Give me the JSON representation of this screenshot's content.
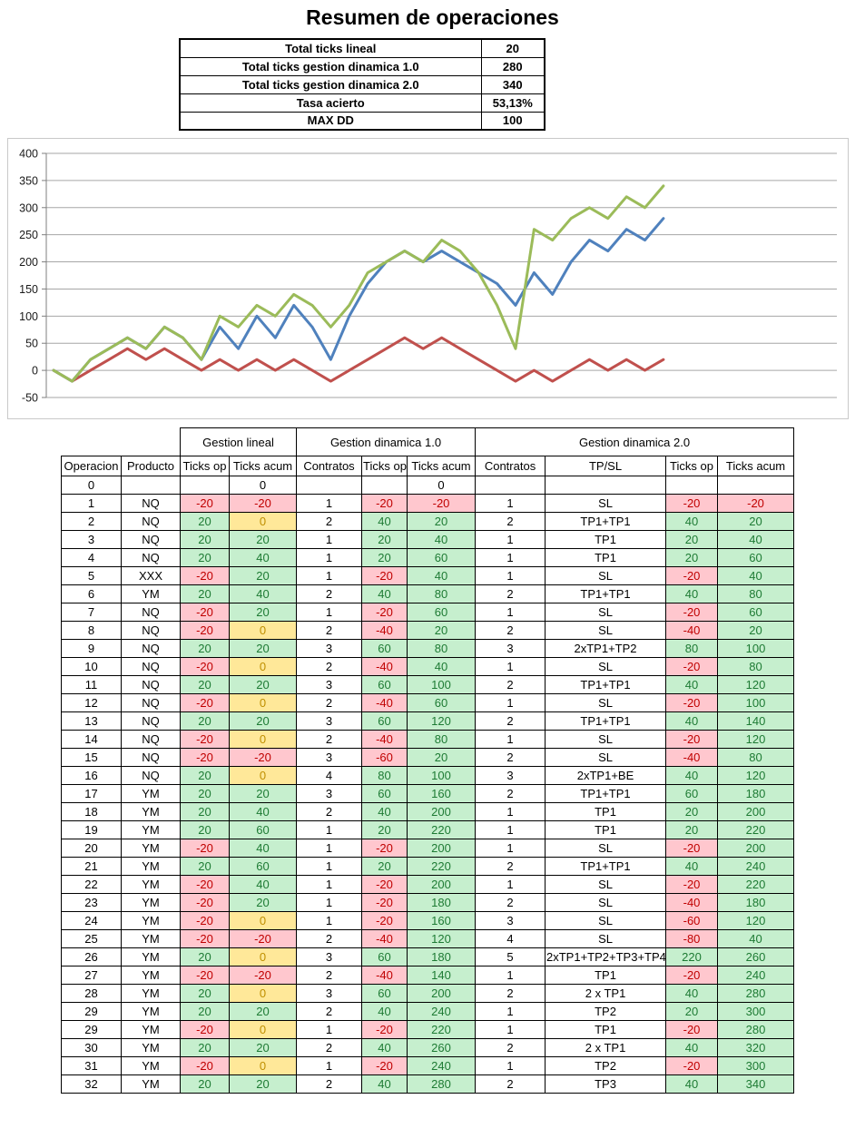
{
  "title": "Resumen de operaciones",
  "summary": {
    "rows": [
      {
        "label": "Total ticks lineal",
        "value": "20"
      },
      {
        "label": "Total ticks gestion dinamica 1.0",
        "value": "280"
      },
      {
        "label": "Total ticks gestion dinamica 2.0",
        "value": "340"
      },
      {
        "label": "Tasa acierto",
        "value": "53,13%"
      },
      {
        "label": "MAX DD",
        "value": "100"
      }
    ]
  },
  "chart_data": {
    "type": "line",
    "title": "",
    "xlabel": "",
    "ylabel": "",
    "ylim": [
      -50,
      400
    ],
    "ytick_interval": 50,
    "grid": true,
    "legend": "none",
    "x_axis_labels": "hidden",
    "x": [
      "0",
      "1",
      "2",
      "3",
      "4",
      "5",
      "6",
      "7",
      "8",
      "9",
      "10",
      "11",
      "12",
      "13",
      "14",
      "15",
      "16",
      "17",
      "18",
      "19",
      "20",
      "21",
      "22",
      "23",
      "24",
      "25",
      "26",
      "27",
      "28",
      "29",
      "29",
      "30",
      "31",
      "32"
    ],
    "series": [
      {
        "name": "Gestion lineal",
        "color": "#C0504D",
        "values": [
          0,
          -20,
          0,
          20,
          40,
          20,
          40,
          20,
          0,
          20,
          0,
          20,
          0,
          20,
          0,
          -20,
          0,
          20,
          40,
          60,
          40,
          60,
          40,
          20,
          0,
          -20,
          0,
          -20,
          0,
          20,
          0,
          20,
          0,
          20
        ]
      },
      {
        "name": "Gestion dinamica 1.0",
        "color": "#4F81BD",
        "values": [
          0,
          -20,
          20,
          40,
          60,
          40,
          80,
          60,
          20,
          80,
          40,
          100,
          60,
          120,
          80,
          20,
          100,
          160,
          200,
          220,
          200,
          220,
          200,
          180,
          160,
          120,
          180,
          140,
          200,
          240,
          220,
          260,
          240,
          280
        ]
      },
      {
        "name": "Gestion dinamica 2.0",
        "color": "#9BBB59",
        "values": [
          0,
          -20,
          20,
          40,
          60,
          40,
          80,
          60,
          20,
          100,
          80,
          120,
          100,
          140,
          120,
          80,
          120,
          180,
          200,
          220,
          200,
          240,
          220,
          180,
          120,
          40,
          260,
          240,
          280,
          300,
          280,
          320,
          300,
          340
        ]
      }
    ]
  },
  "table": {
    "group_headers": [
      {
        "label": "",
        "span": 2,
        "borderless": true
      },
      {
        "label": "Gestion lineal",
        "span": 2
      },
      {
        "label": "Gestion dinamica 1.0",
        "span": 3
      },
      {
        "label": "Gestion dinamica 2.0",
        "span": 4
      }
    ],
    "columns": [
      "Operacion",
      "Producto",
      "Ticks op",
      "Ticks acum",
      "Contratos",
      "Ticks op",
      "Ticks acum",
      "Contratos",
      "TP/SL",
      "Ticks op",
      "Ticks acum"
    ],
    "column_keys": [
      "operacion",
      "producto",
      "lineal-ticks-op",
      "lineal-ticks-acum",
      "d1-contratos",
      "d1-ticks-op",
      "d1-ticks-acum",
      "d2-contratos",
      "d2-tpsl",
      "d2-ticks-op",
      "d2-ticks-acum"
    ],
    "rows": [
      [
        "0",
        "",
        "",
        "0",
        "",
        "",
        "0",
        "",
        "",
        "",
        ""
      ],
      [
        "1",
        "NQ",
        "-20",
        "-20",
        "1",
        "-20",
        "-20",
        "1",
        "SL",
        "-20",
        "-20"
      ],
      [
        "2",
        "NQ",
        "20",
        "0",
        "2",
        "40",
        "20",
        "2",
        "TP1+TP1",
        "40",
        "20"
      ],
      [
        "3",
        "NQ",
        "20",
        "20",
        "1",
        "20",
        "40",
        "1",
        "TP1",
        "20",
        "40"
      ],
      [
        "4",
        "NQ",
        "20",
        "40",
        "1",
        "20",
        "60",
        "1",
        "TP1",
        "20",
        "60"
      ],
      [
        "5",
        "XXX",
        "-20",
        "20",
        "1",
        "-20",
        "40",
        "1",
        "SL",
        "-20",
        "40"
      ],
      [
        "6",
        "YM",
        "20",
        "40",
        "2",
        "40",
        "80",
        "2",
        "TP1+TP1",
        "40",
        "80"
      ],
      [
        "7",
        "NQ",
        "-20",
        "20",
        "1",
        "-20",
        "60",
        "1",
        "SL",
        "-20",
        "60"
      ],
      [
        "8",
        "NQ",
        "-20",
        "0",
        "2",
        "-40",
        "20",
        "2",
        "SL",
        "-40",
        "20"
      ],
      [
        "9",
        "NQ",
        "20",
        "20",
        "3",
        "60",
        "80",
        "3",
        "2xTP1+TP2",
        "80",
        "100"
      ],
      [
        "10",
        "NQ",
        "-20",
        "0",
        "2",
        "-40",
        "40",
        "1",
        "SL",
        "-20",
        "80"
      ],
      [
        "11",
        "NQ",
        "20",
        "20",
        "3",
        "60",
        "100",
        "2",
        "TP1+TP1",
        "40",
        "120"
      ],
      [
        "12",
        "NQ",
        "-20",
        "0",
        "2",
        "-40",
        "60",
        "1",
        "SL",
        "-20",
        "100"
      ],
      [
        "13",
        "NQ",
        "20",
        "20",
        "3",
        "60",
        "120",
        "2",
        "TP1+TP1",
        "40",
        "140"
      ],
      [
        "14",
        "NQ",
        "-20",
        "0",
        "2",
        "-40",
        "80",
        "1",
        "SL",
        "-20",
        "120"
      ],
      [
        "15",
        "NQ",
        "-20",
        "-20",
        "3",
        "-60",
        "20",
        "2",
        "SL",
        "-40",
        "80"
      ],
      [
        "16",
        "NQ",
        "20",
        "0",
        "4",
        "80",
        "100",
        "3",
        "2xTP1+BE",
        "40",
        "120"
      ],
      [
        "17",
        "YM",
        "20",
        "20",
        "3",
        "60",
        "160",
        "2",
        "TP1+TP1",
        "60",
        "180"
      ],
      [
        "18",
        "YM",
        "20",
        "40",
        "2",
        "40",
        "200",
        "1",
        "TP1",
        "20",
        "200"
      ],
      [
        "19",
        "YM",
        "20",
        "60",
        "1",
        "20",
        "220",
        "1",
        "TP1",
        "20",
        "220"
      ],
      [
        "20",
        "YM",
        "-20",
        "40",
        "1",
        "-20",
        "200",
        "1",
        "SL",
        "-20",
        "200"
      ],
      [
        "21",
        "YM",
        "20",
        "60",
        "1",
        "20",
        "220",
        "2",
        "TP1+TP1",
        "40",
        "240"
      ],
      [
        "22",
        "YM",
        "-20",
        "40",
        "1",
        "-20",
        "200",
        "1",
        "SL",
        "-20",
        "220"
      ],
      [
        "23",
        "YM",
        "-20",
        "20",
        "1",
        "-20",
        "180",
        "2",
        "SL",
        "-40",
        "180"
      ],
      [
        "24",
        "YM",
        "-20",
        "0",
        "1",
        "-20",
        "160",
        "3",
        "SL",
        "-60",
        "120"
      ],
      [
        "25",
        "YM",
        "-20",
        "-20",
        "2",
        "-40",
        "120",
        "4",
        "SL",
        "-80",
        "40"
      ],
      [
        "26",
        "YM",
        "20",
        "0",
        "3",
        "60",
        "180",
        "5",
        "2xTP1+TP2+TP3+TP4",
        "220",
        "260"
      ],
      [
        "27",
        "YM",
        "-20",
        "-20",
        "2",
        "-40",
        "140",
        "1",
        "TP1",
        "-20",
        "240"
      ],
      [
        "28",
        "YM",
        "20",
        "0",
        "3",
        "60",
        "200",
        "2",
        "2 x TP1",
        "40",
        "280"
      ],
      [
        "29",
        "YM",
        "20",
        "20",
        "2",
        "40",
        "240",
        "1",
        "TP2",
        "20",
        "300"
      ],
      [
        "29",
        "YM",
        "-20",
        "0",
        "1",
        "-20",
        "220",
        "1",
        "TP1",
        "-20",
        "280"
      ],
      [
        "30",
        "YM",
        "20",
        "20",
        "2",
        "40",
        "260",
        "2",
        "2 x TP1",
        "40",
        "320"
      ],
      [
        "31",
        "YM",
        "-20",
        "0",
        "1",
        "-20",
        "240",
        "1",
        "TP2",
        "-20",
        "300"
      ],
      [
        "32",
        "YM",
        "20",
        "20",
        "2",
        "40",
        "280",
        "2",
        "TP3",
        "40",
        "340"
      ]
    ]
  },
  "colors": {
    "positive_fill": "#C6EFCE",
    "positive_text": "#1E7B34",
    "negative_fill": "#FFC7CE",
    "negative_text": "#C00000",
    "zero_fill": "#FFE899",
    "zero_text": "#BF8F00",
    "gridline": "#A6A6A6",
    "axis": "#7F7F7F",
    "series_lineal": "#C0504D",
    "series_dinamica1": "#4F81BD",
    "series_dinamica2": "#9BBB59"
  }
}
